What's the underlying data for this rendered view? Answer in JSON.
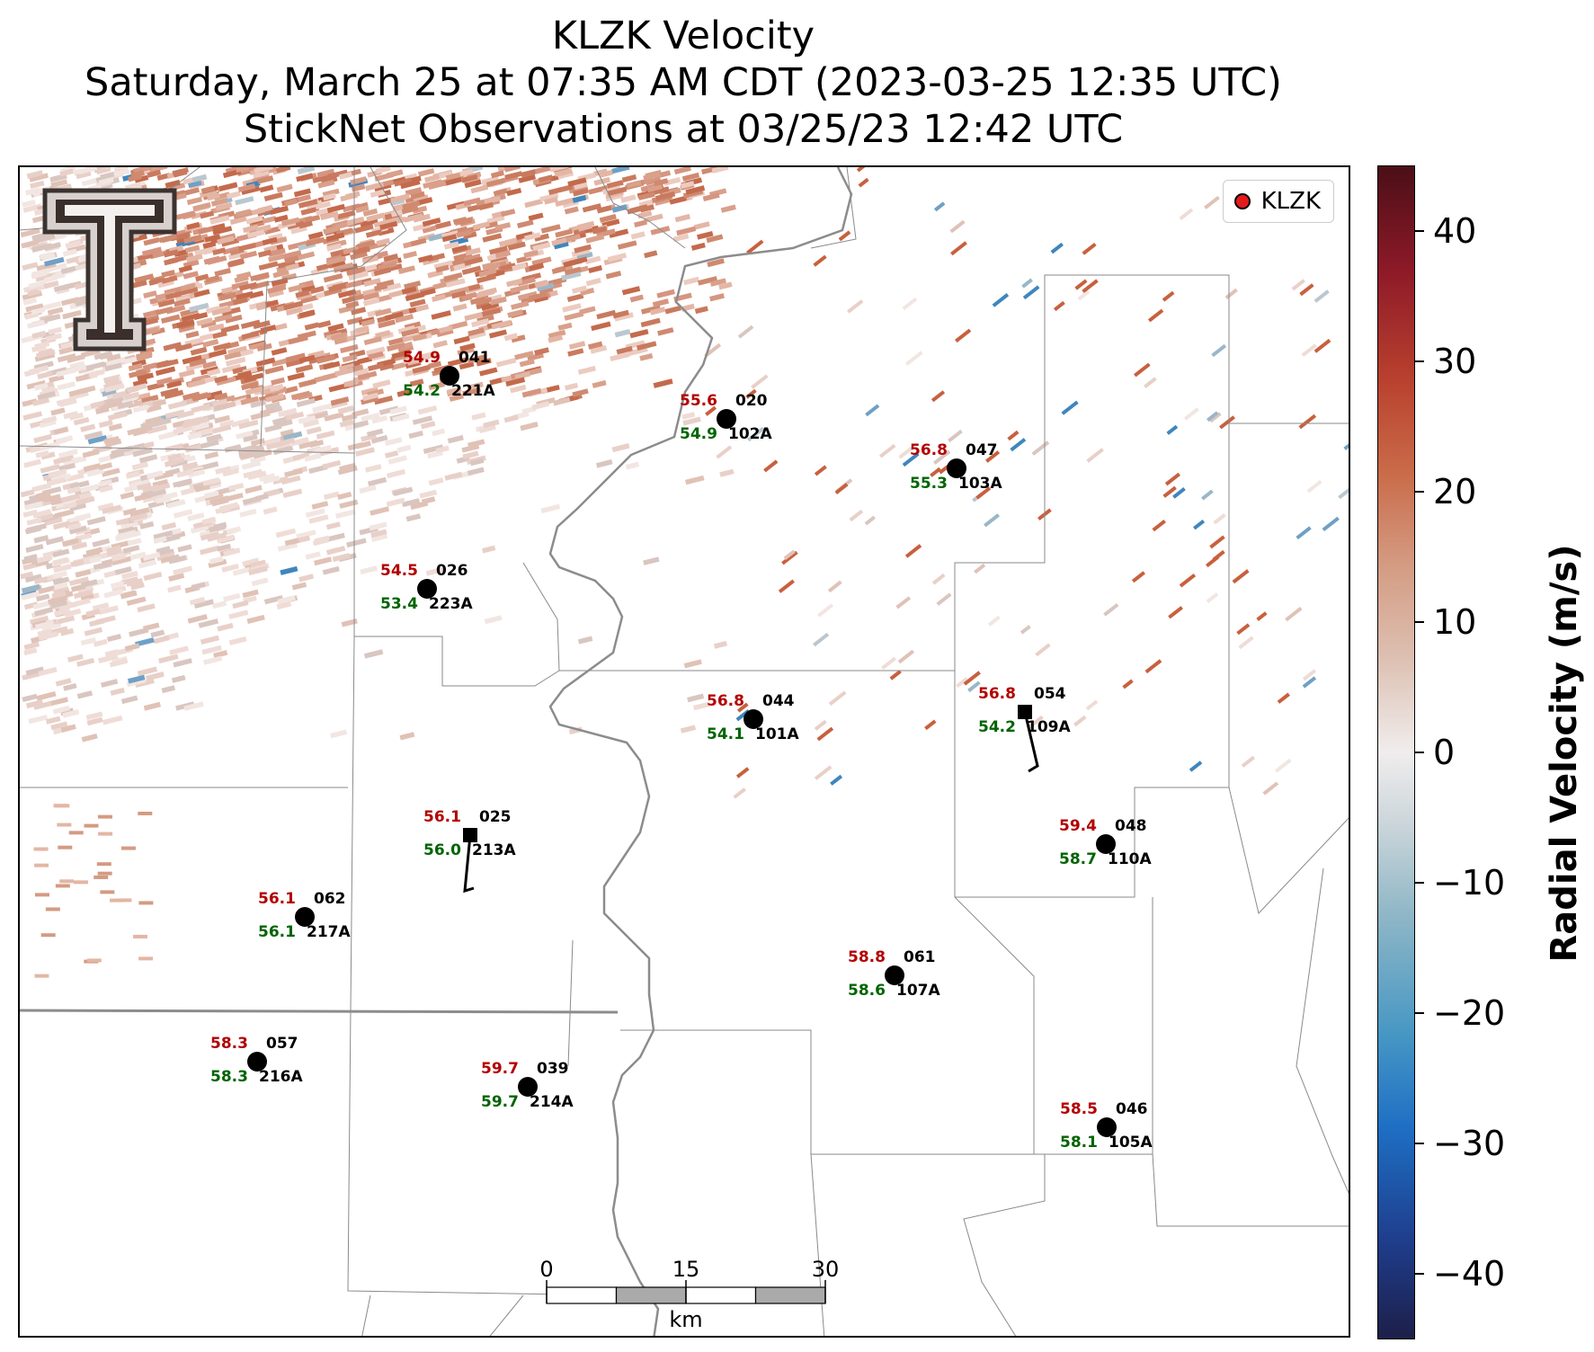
{
  "title": {
    "line1": "KLZK Velocity",
    "line2": "Saturday, March 25 at 07:35 AM CDT (2023-03-25 12:35 UTC)",
    "line3": "StickNet Observations at 03/25/23 12:42 UTC"
  },
  "legend": {
    "label": "KLZK",
    "marker_color": "#e41a1c"
  },
  "colorbar": {
    "title": "Radial Velocity (m/s)",
    "min": -45,
    "max": 45,
    "ticks": [
      "−40",
      "−30",
      "−20",
      "−10",
      "0",
      "10",
      "20",
      "30",
      "40"
    ],
    "colors": {
      "strong_inbound": "#1d1f49",
      "inbound": "#1e6fc4",
      "neutral": "#f0eded",
      "outbound": "#c96a48",
      "strong_outbound": "#4b0f17"
    }
  },
  "scale_bar": {
    "labels": [
      "0",
      "15",
      "30"
    ],
    "unit": "km",
    "colors": [
      "#ffffff",
      "#aaaaaa"
    ]
  },
  "station_label_colors": {
    "pressure_top": "#b30000",
    "pressure_bottom": "#006400",
    "id": "#000000"
  },
  "stations": [
    {
      "id": "041",
      "sub": "221A",
      "top": "54.9",
      "bottom": "54.2",
      "marker": "circle"
    },
    {
      "id": "020",
      "sub": "102A",
      "top": "55.6",
      "bottom": "54.9",
      "marker": "circle"
    },
    {
      "id": "047",
      "sub": "103A",
      "top": "56.8",
      "bottom": "55.3",
      "marker": "circle"
    },
    {
      "id": "026",
      "sub": "223A",
      "top": "54.5",
      "bottom": "53.4",
      "marker": "circle"
    },
    {
      "id": "044",
      "sub": "101A",
      "top": "56.8",
      "bottom": "54.1",
      "marker": "circle"
    },
    {
      "id": "054",
      "sub": "109A",
      "top": "56.8",
      "bottom": "54.2",
      "marker": "square"
    },
    {
      "id": "025",
      "sub": "213A",
      "top": "56.1",
      "bottom": "56.0",
      "marker": "square"
    },
    {
      "id": "048",
      "sub": "110A",
      "top": "59.4",
      "bottom": "58.7",
      "marker": "circle"
    },
    {
      "id": "062",
      "sub": "217A",
      "top": "56.1",
      "bottom": "56.1",
      "marker": "circle"
    },
    {
      "id": "061",
      "sub": "107A",
      "top": "58.8",
      "bottom": "58.6",
      "marker": "circle"
    },
    {
      "id": "057",
      "sub": "216A",
      "top": "58.3",
      "bottom": "58.3",
      "marker": "circle"
    },
    {
      "id": "039",
      "sub": "214A",
      "top": "59.7",
      "bottom": "59.7",
      "marker": "circle"
    },
    {
      "id": "046",
      "sub": "105A",
      "top": "58.5",
      "bottom": "58.1",
      "marker": "circle"
    }
  ]
}
